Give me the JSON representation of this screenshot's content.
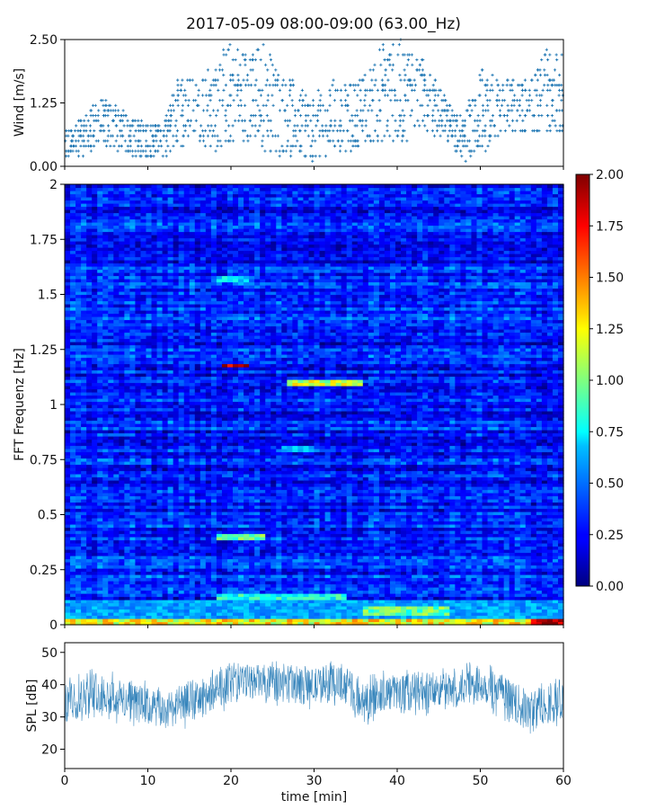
{
  "chart_data": [
    {
      "type": "scatter",
      "title": "2017-05-09 08:00-09:00 (63.00_Hz)",
      "ylabel": "Wind [m/s]",
      "xlim": [
        0,
        60
      ],
      "ylim": [
        0,
        2.5
      ],
      "yticks": [
        "0.00",
        "1.25",
        "2.50"
      ],
      "marker_color": "#1f77b4",
      "envelope": {
        "x": [
          0,
          2,
          4,
          6,
          8,
          10,
          12,
          14,
          16,
          18,
          20,
          22,
          24,
          26,
          28,
          30,
          32,
          34,
          36,
          38,
          40,
          42,
          44,
          46,
          48,
          50,
          52,
          54,
          56,
          58,
          60
        ],
        "low": [
          0.1,
          0.2,
          0.4,
          0.3,
          0.2,
          0.15,
          0.2,
          0.4,
          0.5,
          0.3,
          0.4,
          0.5,
          0.3,
          0.2,
          0.2,
          0.1,
          0.3,
          0.3,
          0.4,
          0.5,
          0.4,
          0.6,
          0.7,
          0.5,
          0.1,
          0.2,
          0.5,
          0.6,
          0.7,
          0.6,
          0.7
        ],
        "high": [
          0.7,
          1.0,
          1.4,
          1.3,
          1.0,
          0.8,
          1.0,
          1.9,
          1.8,
          2.0,
          2.5,
          2.3,
          2.5,
          1.9,
          1.6,
          1.4,
          1.7,
          1.6,
          1.8,
          2.4,
          2.5,
          2.4,
          1.9,
          1.3,
          0.9,
          1.9,
          1.8,
          1.7,
          1.7,
          2.3,
          2.2
        ]
      }
    },
    {
      "type": "heatmap",
      "ylabel": "FFT Frequenz [Hz]",
      "xlim": [
        0,
        60
      ],
      "ylim": [
        0,
        2
      ],
      "yticks": [
        "0",
        "0.25",
        "0.5",
        "0.75",
        "1",
        "1.25",
        "1.5",
        "1.75",
        "2"
      ],
      "colormap": "jet",
      "colorbar": {
        "range": [
          0,
          2
        ],
        "ticks": [
          "0.00",
          "0.25",
          "0.50",
          "0.75",
          "1.00",
          "1.25",
          "1.50",
          "1.75",
          "2.00"
        ]
      },
      "background_level": 0.3,
      "features": [
        {
          "t0": 0,
          "t1": 60,
          "f0": 0.0,
          "f1": 0.03,
          "level": 1.3
        },
        {
          "t0": 0,
          "t1": 60,
          "f0": 0.03,
          "f1": 0.12,
          "level": 0.6
        },
        {
          "t0": 19,
          "t1": 22,
          "f0": 1.17,
          "f1": 1.19,
          "level": 1.9
        },
        {
          "t0": 27,
          "t1": 36,
          "f0": 1.09,
          "f1": 1.12,
          "level": 1.2
        },
        {
          "t0": 18,
          "t1": 24,
          "f0": 0.38,
          "f1": 0.41,
          "level": 1.0
        },
        {
          "t0": 18,
          "t1": 34,
          "f0": 0.12,
          "f1": 0.14,
          "level": 0.85
        },
        {
          "t0": 18,
          "t1": 22,
          "f0": 1.56,
          "f1": 1.59,
          "level": 0.75
        },
        {
          "t0": 26,
          "t1": 30,
          "f0": 0.79,
          "f1": 0.82,
          "level": 0.7
        },
        {
          "t0": 36,
          "t1": 46,
          "f0": 0.04,
          "f1": 0.08,
          "level": 1.0
        },
        {
          "t0": 56,
          "t1": 60,
          "f0": 0.0,
          "f1": 0.03,
          "level": 2.0
        }
      ]
    },
    {
      "type": "area",
      "ylabel": "SPL [dB]",
      "xlabel": "time [min]",
      "xlim": [
        0,
        60
      ],
      "ylim": [
        14,
        53
      ],
      "xticks": [
        "0",
        "10",
        "20",
        "30",
        "40",
        "50",
        "60"
      ],
      "yticks": [
        "20",
        "30",
        "40",
        "50"
      ],
      "line_color": "#1f77b4",
      "envelope": {
        "x": [
          0,
          2,
          4,
          6,
          8,
          10,
          12,
          14,
          16,
          18,
          20,
          22,
          24,
          26,
          28,
          30,
          32,
          34,
          36,
          38,
          40,
          42,
          44,
          46,
          48,
          50,
          52,
          54,
          56,
          58,
          60
        ],
        "low": [
          26,
          28,
          30,
          28,
          27,
          25,
          24,
          26,
          27,
          30,
          33,
          34,
          34,
          33,
          32,
          32,
          33,
          32,
          26,
          30,
          30,
          30,
          30,
          30,
          32,
          33,
          30,
          27,
          22,
          27,
          26
        ],
        "high": [
          42,
          44,
          46,
          44,
          43,
          41,
          40,
          42,
          43,
          46,
          48,
          48,
          48,
          47,
          46,
          47,
          48,
          47,
          42,
          45,
          45,
          46,
          46,
          45,
          47,
          48,
          46,
          43,
          40,
          44,
          42
        ]
      }
    }
  ]
}
